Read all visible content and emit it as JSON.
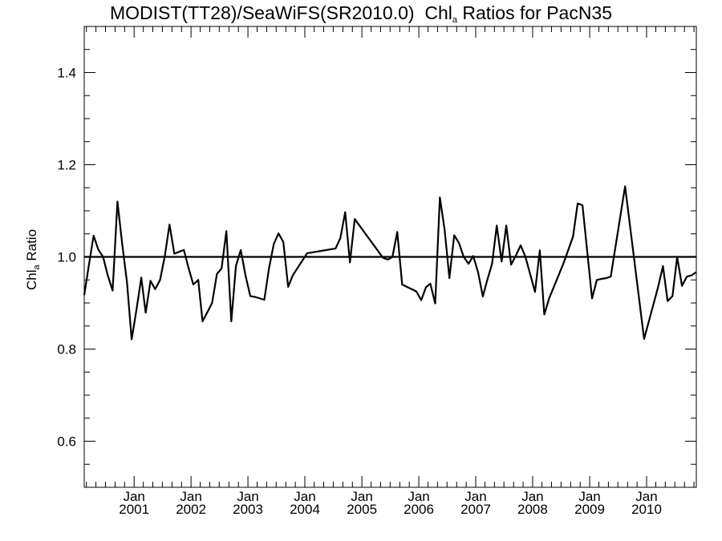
{
  "chart_data": {
    "type": "line",
    "title_parts": {
      "prefix": "MODIST(TT28)/SeaWiFS(SR2010.0)  Chl",
      "sub": "a",
      "suffix": " Ratios for PacN35"
    },
    "ylabel_parts": {
      "prefix": "Chl",
      "sub": "a",
      "suffix": " Ratio"
    },
    "xlabel": "",
    "xlim": [
      "2000-02-16",
      "2010-11-16"
    ],
    "ylim": [
      0.5,
      1.5
    ],
    "yticks": [
      0.6,
      0.8,
      1.0,
      1.2,
      1.4
    ],
    "ytick_labels": [
      "0.6",
      "0.8",
      "1.0",
      "1.2",
      "1.4"
    ],
    "xticks": [
      "2001-01-01",
      "2002-01-01",
      "2003-01-01",
      "2004-01-01",
      "2005-01-01",
      "2006-01-01",
      "2007-01-01",
      "2008-01-01",
      "2009-01-01",
      "2010-01-01"
    ],
    "xtick_month_label": "Jan",
    "xtick_year_labels": [
      "2001",
      "2002",
      "2003",
      "2004",
      "2005",
      "2006",
      "2007",
      "2008",
      "2009",
      "2010"
    ],
    "reference_line": 1.0,
    "series": [
      {
        "x": [
          "2000-02-16",
          "2000-03-16",
          "2000-04-16",
          "2000-05-16",
          "2000-06-16",
          "2000-07-16",
          "2000-08-16",
          "2000-09-16",
          "2000-10-16",
          "2000-11-16",
          "2000-12-16",
          "2001-01-16",
          "2001-02-16",
          "2001-03-16",
          "2001-04-16",
          "2001-05-16",
          "2001-06-16",
          "2001-07-16",
          "2001-08-16",
          "2001-09-16",
          "2001-10-16",
          "2001-11-16",
          "2001-12-16",
          "2002-01-16",
          "2002-02-16",
          "2002-03-16",
          "2002-04-16",
          "2002-05-16",
          "2002-06-16",
          "2002-07-16",
          "2002-08-16",
          "2002-09-16",
          "2002-10-16",
          "2002-11-16",
          "2002-12-16",
          "2003-01-16",
          "2003-02-16",
          "2003-04-16",
          "2003-05-16",
          "2003-06-16",
          "2003-07-16",
          "2003-08-16",
          "2003-09-16",
          "2003-10-16",
          "2004-01-16",
          "2004-04-16",
          "2004-07-16",
          "2004-08-16",
          "2004-09-16",
          "2004-10-16",
          "2004-11-16",
          "2005-05-16",
          "2005-06-16",
          "2005-07-16",
          "2005-08-16",
          "2005-09-16",
          "2005-12-16",
          "2006-01-16",
          "2006-02-16",
          "2006-03-16",
          "2006-04-16",
          "2006-05-16",
          "2006-06-16",
          "2006-07-16",
          "2006-08-16",
          "2006-09-16",
          "2006-10-16",
          "2006-11-16",
          "2006-12-16",
          "2007-01-16",
          "2007-02-16",
          "2007-03-16",
          "2007-04-16",
          "2007-05-16",
          "2007-06-16",
          "2007-07-16",
          "2007-08-16",
          "2007-09-16",
          "2007-10-16",
          "2007-11-16",
          "2008-01-16",
          "2008-02-16",
          "2008-03-16",
          "2008-04-16",
          "2008-07-16",
          "2008-09-16",
          "2008-10-16",
          "2008-11-16",
          "2009-01-16",
          "2009-02-16",
          "2009-03-16",
          "2009-04-16",
          "2009-05-16",
          "2009-08-16",
          "2009-12-16",
          "2010-03-16",
          "2010-04-16",
          "2010-05-16",
          "2010-06-16",
          "2010-07-16",
          "2010-08-16",
          "2010-09-16",
          "2010-10-16",
          "2010-11-16"
        ],
        "values": [
          0.917,
          0.98,
          1.046,
          1.016,
          1.0,
          0.96,
          0.927,
          1.12,
          1.03,
          0.945,
          0.821,
          0.885,
          0.955,
          0.879,
          0.948,
          0.93,
          0.95,
          1.0,
          1.07,
          1.007,
          1.011,
          1.015,
          0.976,
          0.94,
          0.95,
          0.86,
          0.88,
          0.9,
          0.963,
          0.975,
          1.056,
          0.86,
          0.98,
          1.015,
          0.96,
          0.915,
          0.913,
          0.907,
          0.975,
          1.028,
          1.051,
          1.032,
          0.935,
          0.96,
          1.008,
          1.013,
          1.018,
          1.041,
          1.097,
          0.988,
          1.082,
          0.998,
          0.994,
          1.0,
          1.054,
          0.94,
          0.925,
          0.906,
          0.934,
          0.942,
          0.899,
          1.129,
          1.058,
          0.954,
          1.047,
          1.03,
          1.0,
          0.985,
          1.002,
          0.967,
          0.914,
          0.95,
          0.985,
          1.068,
          0.99,
          1.068,
          0.983,
          1.003,
          1.025,
          1.0,
          0.924,
          1.014,
          0.875,
          0.91,
          0.985,
          1.044,
          1.116,
          1.112,
          0.91,
          0.95,
          0.952,
          0.954,
          0.957,
          1.153,
          0.822,
          0.935,
          0.98,
          0.904,
          0.915,
          1.0,
          0.937,
          0.957,
          0.96,
          0.967
        ]
      }
    ],
    "grid": false,
    "legend": "none"
  }
}
